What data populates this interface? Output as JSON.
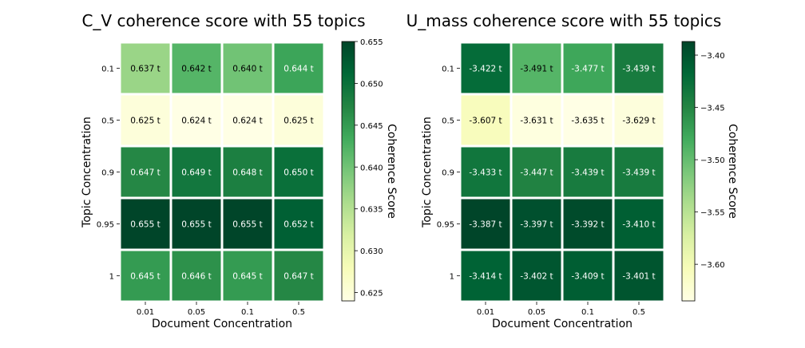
{
  "chart_data": [
    {
      "type": "heatmap",
      "title": "C_V coherence score with 55 topics",
      "xlabel": "Document Concentration",
      "ylabel": "Topic Concentration",
      "x_categories": [
        "0.01",
        "0.05",
        "0.1",
        "0.5"
      ],
      "y_categories": [
        "0.1",
        "0.5",
        "0.9",
        "0.95",
        "1"
      ],
      "values": [
        [
          0.637,
          0.642,
          0.64,
          0.644
        ],
        [
          0.625,
          0.624,
          0.624,
          0.625
        ],
        [
          0.647,
          0.649,
          0.648,
          0.65
        ],
        [
          0.655,
          0.655,
          0.655,
          0.652
        ],
        [
          0.645,
          0.646,
          0.645,
          0.647
        ]
      ],
      "cell_labels": [
        [
          "0.637 t",
          "0.642 t",
          "0.640 t",
          "0.644 t"
        ],
        [
          "0.625 t",
          "0.624 t",
          "0.624 t",
          "0.625 t"
        ],
        [
          "0.647 t",
          "0.649 t",
          "0.648 t",
          "0.650 t"
        ],
        [
          "0.655 t",
          "0.655 t",
          "0.655 t",
          "0.652 t"
        ],
        [
          "0.645 t",
          "0.646 t",
          "0.645 t",
          "0.647 t"
        ]
      ],
      "colorbar": {
        "label": "Coherence Score",
        "vmin": 0.624,
        "vmax": 0.655,
        "ticks": [
          0.625,
          0.63,
          0.635,
          0.64,
          0.645,
          0.65,
          0.655
        ],
        "tick_labels": [
          "0.625",
          "0.630",
          "0.635",
          "0.640",
          "0.645",
          "0.650",
          "0.655"
        ]
      },
      "colormap": "YlGn"
    },
    {
      "type": "heatmap",
      "title": "U_mass coherence score with 55 topics",
      "xlabel": "Document Concentration",
      "ylabel": "Topic Concentration",
      "x_categories": [
        "0.01",
        "0.05",
        "0.1",
        "0.5"
      ],
      "y_categories": [
        "0.1",
        "0.5",
        "0.9",
        "0.95",
        "1"
      ],
      "values": [
        [
          -3.422,
          -3.491,
          -3.477,
          -3.439
        ],
        [
          -3.607,
          -3.631,
          -3.635,
          -3.629
        ],
        [
          -3.433,
          -3.447,
          -3.439,
          -3.439
        ],
        [
          -3.387,
          -3.397,
          -3.392,
          -3.41
        ],
        [
          -3.414,
          -3.402,
          -3.409,
          -3.401
        ]
      ],
      "cell_labels": [
        [
          "-3.422 t",
          "-3.491 t",
          "-3.477 t",
          "-3.439 t"
        ],
        [
          "-3.607 t",
          "-3.631 t",
          "-3.635 t",
          "-3.629 t"
        ],
        [
          "-3.433 t",
          "-3.447 t",
          "-3.439 t",
          "-3.439 t"
        ],
        [
          "-3.387 t",
          "-3.397 t",
          "-3.392 t",
          "-3.410 t"
        ],
        [
          "-3.414 t",
          "-3.402 t",
          "-3.409 t",
          "-3.401 t"
        ]
      ],
      "colorbar": {
        "label": "Coherence Score",
        "vmin": -3.635,
        "vmax": -3.387,
        "ticks": [
          -3.4,
          -3.45,
          -3.5,
          -3.55,
          -3.6
        ],
        "tick_labels": [
          "−3.40",
          "−3.45",
          "−3.50",
          "−3.55",
          "−3.60"
        ]
      },
      "colormap": "YlGn"
    }
  ]
}
